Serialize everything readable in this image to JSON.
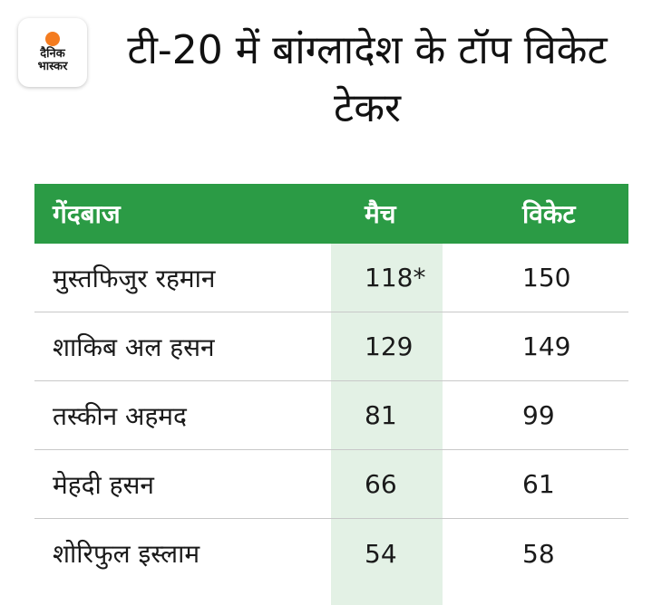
{
  "logo": {
    "line1": "दैनिक",
    "line2": "भास्कर"
  },
  "title": "टी-20 में बांग्लादेश के टॉप विकेट टेकर",
  "table": {
    "headers": [
      "गेंदबाज",
      "मैच",
      "विकेट"
    ],
    "rows": [
      [
        "मुस्तफिजुर रहमान",
        "118*",
        "150"
      ],
      [
        "शाकिब अल हसन",
        "129",
        "149"
      ],
      [
        "तस्कीन अहमद",
        "81",
        "99"
      ],
      [
        "मेहदी हसन",
        "66",
        "61"
      ],
      [
        "शोरिफुल इस्लाम",
        "54",
        "58"
      ]
    ]
  },
  "colors": {
    "header_bg": "#2b9b45",
    "highlight_col": "#e3f1e5",
    "logo_sun": "#f47c20"
  }
}
